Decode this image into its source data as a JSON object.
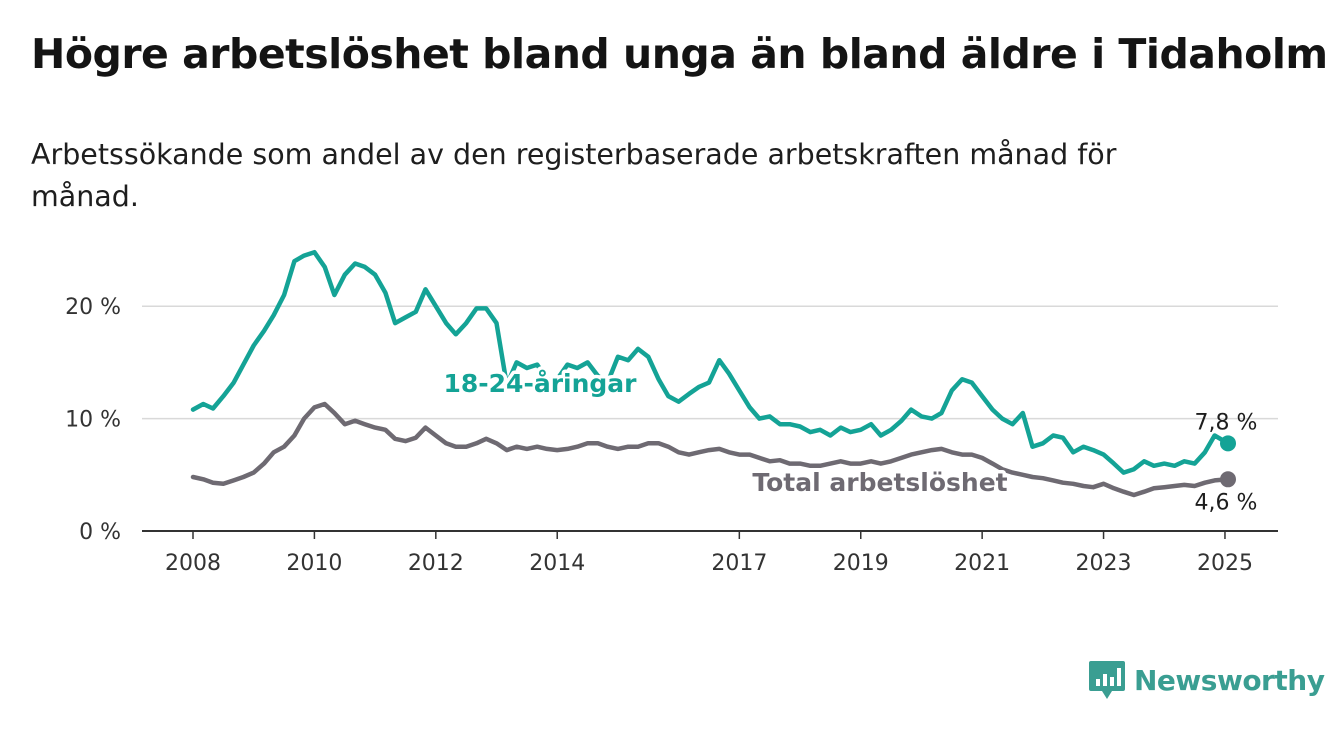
{
  "title": "Högre arbetslöshet bland unga än bland äldre i Tidaholm",
  "subtitle": "Arbetssökande som andel av den registerbaserade arbetskraften månad för månad.",
  "brand": {
    "name": "Newsworthy",
    "icon": "newsworthy-logo-icon"
  },
  "colors": {
    "young": "#14a396",
    "total": "#6e6a72",
    "grid": "#d9d9d9",
    "axis": "#333333"
  },
  "chart_data": {
    "type": "line",
    "title": "Högre arbetslöshet bland unga än bland äldre i Tidaholm",
    "xlabel": "",
    "ylabel": "",
    "xlim": [
      2008,
      2025.05
    ],
    "ylim": [
      0,
      25
    ],
    "grid": true,
    "x_ticks": [
      {
        "value": 2008,
        "label": "2008"
      },
      {
        "value": 2010,
        "label": "2010"
      },
      {
        "value": 2012,
        "label": "2012"
      },
      {
        "value": 2014,
        "label": "2014"
      },
      {
        "value": 2017,
        "label": "2017"
      },
      {
        "value": 2019,
        "label": "2019"
      },
      {
        "value": 2021,
        "label": "2021"
      },
      {
        "value": 2023,
        "label": "2023"
      },
      {
        "value": 2025,
        "label": "2025"
      }
    ],
    "y_ticks": [
      {
        "value": 0,
        "label": "0 %"
      },
      {
        "value": 10,
        "label": "10 %"
      },
      {
        "value": 20,
        "label": "20 %"
      }
    ],
    "series": [
      {
        "name": "18-24-åringar",
        "color": "#14a396",
        "end_label": "7,8 %",
        "points": [
          [
            2008.0,
            10.8
          ],
          [
            2008.17,
            11.3
          ],
          [
            2008.33,
            10.9
          ],
          [
            2008.5,
            12.0
          ],
          [
            2008.67,
            13.2
          ],
          [
            2008.83,
            14.8
          ],
          [
            2009.0,
            16.5
          ],
          [
            2009.17,
            17.8
          ],
          [
            2009.33,
            19.2
          ],
          [
            2009.5,
            21.0
          ],
          [
            2009.67,
            24.0
          ],
          [
            2009.83,
            24.5
          ],
          [
            2010.0,
            24.8
          ],
          [
            2010.17,
            23.5
          ],
          [
            2010.33,
            21.0
          ],
          [
            2010.5,
            22.8
          ],
          [
            2010.67,
            23.8
          ],
          [
            2010.83,
            23.5
          ],
          [
            2011.0,
            22.8
          ],
          [
            2011.17,
            21.2
          ],
          [
            2011.33,
            18.5
          ],
          [
            2011.5,
            19.0
          ],
          [
            2011.67,
            19.5
          ],
          [
            2011.83,
            21.5
          ],
          [
            2012.0,
            20.0
          ],
          [
            2012.17,
            18.5
          ],
          [
            2012.33,
            17.5
          ],
          [
            2012.5,
            18.5
          ],
          [
            2012.67,
            19.8
          ],
          [
            2012.83,
            19.8
          ],
          [
            2013.0,
            18.5
          ],
          [
            2013.17,
            13.0
          ],
          [
            2013.33,
            15.0
          ],
          [
            2013.5,
            14.5
          ],
          [
            2013.67,
            14.8
          ],
          [
            2013.83,
            13.5
          ],
          [
            2014.0,
            13.5
          ],
          [
            2014.17,
            14.8
          ],
          [
            2014.33,
            14.5
          ],
          [
            2014.5,
            15.0
          ],
          [
            2014.67,
            13.8
          ],
          [
            2014.83,
            13.2
          ],
          [
            2015.0,
            15.5
          ],
          [
            2015.17,
            15.2
          ],
          [
            2015.33,
            16.2
          ],
          [
            2015.5,
            15.5
          ],
          [
            2015.67,
            13.5
          ],
          [
            2015.83,
            12.0
          ],
          [
            2016.0,
            11.5
          ],
          [
            2016.17,
            12.2
          ],
          [
            2016.33,
            12.8
          ],
          [
            2016.5,
            13.2
          ],
          [
            2016.67,
            15.2
          ],
          [
            2016.83,
            14.0
          ],
          [
            2017.0,
            12.5
          ],
          [
            2017.17,
            11.0
          ],
          [
            2017.33,
            10.0
          ],
          [
            2017.5,
            10.2
          ],
          [
            2017.67,
            9.5
          ],
          [
            2017.83,
            9.5
          ],
          [
            2018.0,
            9.3
          ],
          [
            2018.17,
            8.8
          ],
          [
            2018.33,
            9.0
          ],
          [
            2018.5,
            8.5
          ],
          [
            2018.67,
            9.2
          ],
          [
            2018.83,
            8.8
          ],
          [
            2019.0,
            9.0
          ],
          [
            2019.17,
            9.5
          ],
          [
            2019.33,
            8.5
          ],
          [
            2019.5,
            9.0
          ],
          [
            2019.67,
            9.8
          ],
          [
            2019.83,
            10.8
          ],
          [
            2020.0,
            10.2
          ],
          [
            2020.17,
            10.0
          ],
          [
            2020.33,
            10.5
          ],
          [
            2020.5,
            12.5
          ],
          [
            2020.67,
            13.5
          ],
          [
            2020.83,
            13.2
          ],
          [
            2021.0,
            12.0
          ],
          [
            2021.17,
            10.8
          ],
          [
            2021.33,
            10.0
          ],
          [
            2021.5,
            9.5
          ],
          [
            2021.67,
            10.5
          ],
          [
            2021.83,
            7.5
          ],
          [
            2022.0,
            7.8
          ],
          [
            2022.17,
            8.5
          ],
          [
            2022.33,
            8.3
          ],
          [
            2022.5,
            7.0
          ],
          [
            2022.67,
            7.5
          ],
          [
            2022.83,
            7.2
          ],
          [
            2023.0,
            6.8
          ],
          [
            2023.17,
            6.0
          ],
          [
            2023.33,
            5.2
          ],
          [
            2023.5,
            5.5
          ],
          [
            2023.67,
            6.2
          ],
          [
            2023.83,
            5.8
          ],
          [
            2024.0,
            6.0
          ],
          [
            2024.17,
            5.8
          ],
          [
            2024.33,
            6.2
          ],
          [
            2024.5,
            6.0
          ],
          [
            2024.67,
            7.0
          ],
          [
            2024.83,
            8.5
          ],
          [
            2025.05,
            7.8
          ]
        ]
      },
      {
        "name": "Total arbetslöshet",
        "color": "#6e6a72",
        "end_label": "4,6 %",
        "points": [
          [
            2008.0,
            4.8
          ],
          [
            2008.17,
            4.6
          ],
          [
            2008.33,
            4.3
          ],
          [
            2008.5,
            4.2
          ],
          [
            2008.67,
            4.5
          ],
          [
            2008.83,
            4.8
          ],
          [
            2009.0,
            5.2
          ],
          [
            2009.17,
            6.0
          ],
          [
            2009.33,
            7.0
          ],
          [
            2009.5,
            7.5
          ],
          [
            2009.67,
            8.5
          ],
          [
            2009.83,
            10.0
          ],
          [
            2010.0,
            11.0
          ],
          [
            2010.17,
            11.3
          ],
          [
            2010.33,
            10.5
          ],
          [
            2010.5,
            9.5
          ],
          [
            2010.67,
            9.8
          ],
          [
            2010.83,
            9.5
          ],
          [
            2011.0,
            9.2
          ],
          [
            2011.17,
            9.0
          ],
          [
            2011.33,
            8.2
          ],
          [
            2011.5,
            8.0
          ],
          [
            2011.67,
            8.3
          ],
          [
            2011.83,
            9.2
          ],
          [
            2012.0,
            8.5
          ],
          [
            2012.17,
            7.8
          ],
          [
            2012.33,
            7.5
          ],
          [
            2012.5,
            7.5
          ],
          [
            2012.67,
            7.8
          ],
          [
            2012.83,
            8.2
          ],
          [
            2013.0,
            7.8
          ],
          [
            2013.17,
            7.2
          ],
          [
            2013.33,
            7.5
          ],
          [
            2013.5,
            7.3
          ],
          [
            2013.67,
            7.5
          ],
          [
            2013.83,
            7.3
          ],
          [
            2014.0,
            7.2
          ],
          [
            2014.17,
            7.3
          ],
          [
            2014.33,
            7.5
          ],
          [
            2014.5,
            7.8
          ],
          [
            2014.67,
            7.8
          ],
          [
            2014.83,
            7.5
          ],
          [
            2015.0,
            7.3
          ],
          [
            2015.17,
            7.5
          ],
          [
            2015.33,
            7.5
          ],
          [
            2015.5,
            7.8
          ],
          [
            2015.67,
            7.8
          ],
          [
            2015.83,
            7.5
          ],
          [
            2016.0,
            7.0
          ],
          [
            2016.17,
            6.8
          ],
          [
            2016.33,
            7.0
          ],
          [
            2016.5,
            7.2
          ],
          [
            2016.67,
            7.3
          ],
          [
            2016.83,
            7.0
          ],
          [
            2017.0,
            6.8
          ],
          [
            2017.17,
            6.8
          ],
          [
            2017.33,
            6.5
          ],
          [
            2017.5,
            6.2
          ],
          [
            2017.67,
            6.3
          ],
          [
            2017.83,
            6.0
          ],
          [
            2018.0,
            6.0
          ],
          [
            2018.17,
            5.8
          ],
          [
            2018.33,
            5.8
          ],
          [
            2018.5,
            6.0
          ],
          [
            2018.67,
            6.2
          ],
          [
            2018.83,
            6.0
          ],
          [
            2019.0,
            6.0
          ],
          [
            2019.17,
            6.2
          ],
          [
            2019.33,
            6.0
          ],
          [
            2019.5,
            6.2
          ],
          [
            2019.67,
            6.5
          ],
          [
            2019.83,
            6.8
          ],
          [
            2020.0,
            7.0
          ],
          [
            2020.17,
            7.2
          ],
          [
            2020.33,
            7.3
          ],
          [
            2020.5,
            7.0
          ],
          [
            2020.67,
            6.8
          ],
          [
            2020.83,
            6.8
          ],
          [
            2021.0,
            6.5
          ],
          [
            2021.17,
            6.0
          ],
          [
            2021.33,
            5.5
          ],
          [
            2021.5,
            5.2
          ],
          [
            2021.67,
            5.0
          ],
          [
            2021.83,
            4.8
          ],
          [
            2022.0,
            4.7
          ],
          [
            2022.17,
            4.5
          ],
          [
            2022.33,
            4.3
          ],
          [
            2022.5,
            4.2
          ],
          [
            2022.67,
            4.0
          ],
          [
            2022.83,
            3.9
          ],
          [
            2023.0,
            4.2
          ],
          [
            2023.17,
            3.8
          ],
          [
            2023.33,
            3.5
          ],
          [
            2023.5,
            3.2
          ],
          [
            2023.67,
            3.5
          ],
          [
            2023.83,
            3.8
          ],
          [
            2024.0,
            3.9
          ],
          [
            2024.17,
            4.0
          ],
          [
            2024.33,
            4.1
          ],
          [
            2024.5,
            4.0
          ],
          [
            2024.67,
            4.3
          ],
          [
            2024.83,
            4.5
          ],
          [
            2025.05,
            4.6
          ]
        ]
      }
    ]
  }
}
